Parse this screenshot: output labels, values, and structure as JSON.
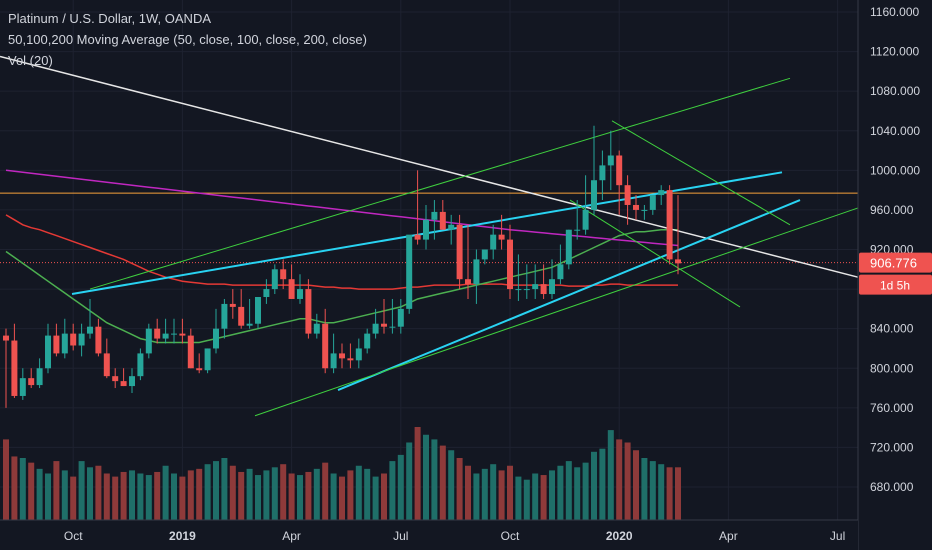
{
  "header": {
    "title": "Platinum / U.S. Dollar, 1W, OANDA",
    "ma_label": "50,100,200 Moving Average (50, close, 100, close, 200, close)",
    "vol_label": "Vol (20)"
  },
  "price_badge": {
    "value": "906.776",
    "countdown": "1d 5h"
  },
  "colors": {
    "background": "#131722",
    "up": "#26a69a",
    "down": "#ef5350",
    "vol_up": "#1f6f69",
    "vol_down": "#8e3a3a",
    "ma50": "#4caf50",
    "ma100": "#e53935",
    "ma200": "#c027c0",
    "trend_white": "#e6e6e6",
    "trend_cyan": "#29d3f2",
    "channel_green": "#3fcf3f",
    "hline_orange": "#f7a23b"
  },
  "chart_data": {
    "type": "candlestick",
    "title": "Platinum / U.S. Dollar, 1W, OANDA",
    "ylim": [
      640,
      1180
    ],
    "y_ticks": [
      "680.000",
      "720.000",
      "760.000",
      "800.000",
      "840.000",
      "880.000",
      "920.000",
      "960.000",
      "1000.000",
      "1040.000",
      "1080.000",
      "1120.000",
      "1160.000"
    ],
    "x_ticks": [
      {
        "label": "Oct",
        "bold": false,
        "index": 8
      },
      {
        "label": "2019",
        "bold": true,
        "index": 21
      },
      {
        "label": "Apr",
        "bold": false,
        "index": 34
      },
      {
        "label": "Jul",
        "bold": false,
        "index": 47
      },
      {
        "label": "Oct",
        "bold": false,
        "index": 60
      },
      {
        "label": "2020",
        "bold": true,
        "index": 73
      },
      {
        "label": "Apr",
        "bold": false,
        "index": 86
      },
      {
        "label": "Jul",
        "bold": false,
        "index": 99
      }
    ],
    "candles": {
      "open": [
        833,
        828,
        772,
        790,
        783,
        800,
        833,
        815,
        835,
        823,
        835,
        842,
        815,
        792,
        787,
        782,
        792,
        815,
        840,
        830,
        835,
        835,
        833,
        800,
        798,
        820,
        840,
        865,
        862,
        843,
        845,
        872,
        880,
        900,
        890,
        870,
        880,
        835,
        845,
        800,
        815,
        810,
        808,
        820,
        835,
        845,
        842,
        842,
        860,
        935,
        930,
        950,
        958,
        940,
        945,
        890,
        885,
        910,
        920,
        935,
        930,
        880,
        880,
        880,
        885,
        875,
        890,
        905,
        940,
        940,
        960,
        990,
        1005,
        1015,
        985,
        965,
        960,
        960,
        975,
        980,
        910
      ],
      "high": [
        840,
        845,
        800,
        800,
        810,
        845,
        845,
        850,
        845,
        845,
        870,
        850,
        830,
        800,
        800,
        800,
        820,
        845,
        850,
        850,
        850,
        850,
        840,
        815,
        820,
        860,
        870,
        880,
        880,
        870,
        870,
        890,
        905,
        910,
        905,
        895,
        890,
        855,
        860,
        835,
        825,
        825,
        830,
        840,
        860,
        870,
        870,
        870,
        900,
        1000,
        965,
        970,
        970,
        955,
        955,
        945,
        920,
        920,
        945,
        955,
        945,
        915,
        905,
        905,
        905,
        910,
        925,
        940,
        970,
        995,
        1045,
        1020,
        1040,
        1020,
        995,
        975,
        965,
        975,
        985,
        985,
        975
      ],
      "low": [
        760,
        770,
        768,
        780,
        780,
        795,
        812,
        810,
        818,
        812,
        830,
        812,
        790,
        780,
        782,
        775,
        788,
        810,
        825,
        825,
        825,
        825,
        800,
        795,
        795,
        815,
        830,
        850,
        840,
        840,
        840,
        865,
        875,
        880,
        870,
        865,
        830,
        830,
        795,
        795,
        800,
        800,
        800,
        815,
        830,
        835,
        835,
        835,
        855,
        925,
        920,
        930,
        940,
        925,
        880,
        870,
        865,
        905,
        910,
        920,
        870,
        868,
        870,
        870,
        870,
        870,
        885,
        900,
        930,
        935,
        955,
        970,
        980,
        955,
        945,
        950,
        950,
        955,
        965,
        905,
        895
      ],
      "close": [
        828,
        772,
        790,
        783,
        800,
        833,
        815,
        835,
        823,
        835,
        842,
        815,
        792,
        787,
        782,
        792,
        815,
        840,
        830,
        835,
        835,
        833,
        800,
        798,
        820,
        840,
        865,
        862,
        843,
        845,
        872,
        880,
        900,
        890,
        870,
        880,
        835,
        845,
        800,
        815,
        810,
        808,
        820,
        835,
        845,
        842,
        842,
        860,
        935,
        930,
        950,
        958,
        940,
        945,
        890,
        885,
        910,
        920,
        935,
        930,
        880,
        880,
        880,
        885,
        875,
        890,
        905,
        940,
        940,
        960,
        990,
        1005,
        1015,
        985,
        965,
        960,
        960,
        975,
        980,
        910,
        906
      ]
    },
    "volume": [
      52,
      41,
      40,
      37,
      33,
      30,
      38,
      32,
      28,
      38,
      34,
      35,
      30,
      28,
      31,
      32,
      30,
      29,
      31,
      35,
      30,
      28,
      32,
      33,
      36,
      38,
      40,
      35,
      31,
      33,
      29,
      32,
      34,
      36,
      30,
      29,
      31,
      33,
      37,
      30,
      28,
      32,
      35,
      33,
      28,
      30,
      38,
      42,
      50,
      60,
      55,
      52,
      48,
      45,
      40,
      35,
      30,
      33,
      36,
      32,
      35,
      28,
      26,
      30,
      29,
      32,
      35,
      38,
      34,
      37,
      44,
      46,
      58,
      52,
      50,
      45,
      40,
      38,
      36,
      34,
      34
    ],
    "ma50": [
      918,
      912,
      906,
      900,
      894,
      888,
      882,
      876,
      870,
      864,
      858,
      852,
      846,
      842,
      838,
      834,
      830,
      828,
      826,
      826,
      826,
      826,
      826,
      826,
      828,
      830,
      832,
      834,
      836,
      838,
      840,
      842,
      844,
      846,
      848,
      850,
      850,
      848,
      846,
      846,
      848,
      850,
      852,
      854,
      856,
      858,
      860,
      862,
      866,
      870,
      872,
      874,
      876,
      878,
      880,
      882,
      884,
      886,
      888,
      890,
      892,
      894,
      896,
      898,
      900,
      902,
      906,
      910,
      914,
      918,
      922,
      926,
      930,
      934,
      936,
      938,
      938,
      939,
      940,
      940,
      940
    ],
    "ma100": [
      955,
      950,
      945,
      942,
      940,
      937,
      934,
      931,
      928,
      925,
      922,
      919,
      916,
      913,
      910,
      906,
      902,
      898,
      895,
      892,
      890,
      888,
      887,
      886,
      885,
      885,
      885,
      884,
      884,
      884,
      884,
      884,
      884,
      884,
      884,
      884,
      884,
      883,
      882,
      882,
      881,
      881,
      880,
      880,
      880,
      880,
      880,
      881,
      882,
      882,
      883,
      884,
      884,
      884,
      884,
      885,
      885,
      885,
      885,
      885,
      884,
      884,
      884,
      884,
      884,
      884,
      884,
      883,
      883,
      883,
      884,
      884,
      885,
      885,
      884,
      884,
      884,
      884,
      884,
      884,
      884
    ]
  }
}
